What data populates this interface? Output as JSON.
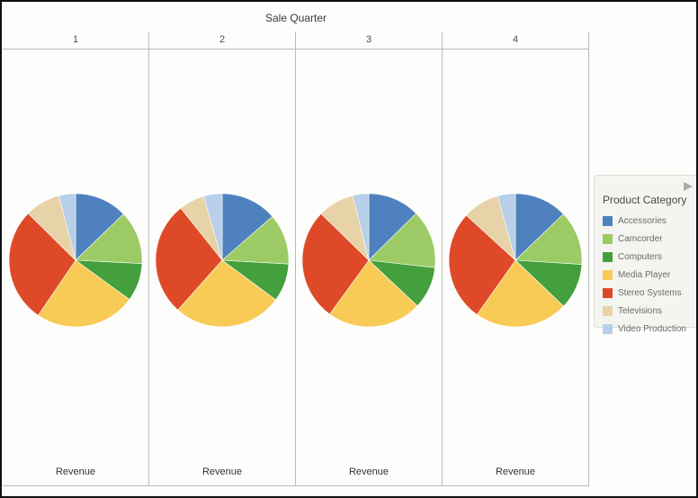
{
  "title": "Sale Quarter",
  "columns": [
    "1",
    "2",
    "3",
    "4"
  ],
  "axis_bottom_label": "Revenue",
  "legend": {
    "title": "Product Category",
    "items": [
      {
        "label": "Accessories",
        "color": "#4E81BD"
      },
      {
        "label": "Camcorder",
        "color": "#9CCB66"
      },
      {
        "label": "Computers",
        "color": "#43A03C"
      },
      {
        "label": "Media Player",
        "color": "#F8CB57"
      },
      {
        "label": "Stereo Systems",
        "color": "#DE4A28"
      },
      {
        "label": "Televisions",
        "color": "#E8D2A7"
      },
      {
        "label": "Video Production",
        "color": "#B7CFE8"
      }
    ]
  },
  "chart_data": {
    "type": "pie",
    "facet_by": "Sale Quarter",
    "measure": "Revenue",
    "title": "Sale Quarter",
    "legend_position": "right",
    "categories": [
      "Accessories",
      "Camcorder",
      "Computers",
      "Media Player",
      "Stereo Systems",
      "Televisions",
      "Video Production"
    ],
    "colors": [
      "#4E81BD",
      "#9CCB66",
      "#43A03C",
      "#F8CB57",
      "#DE4A28",
      "#E8D2A7",
      "#B7CFE8"
    ],
    "facets": [
      {
        "label": "1",
        "values_pct": [
          12.8,
          13.0,
          9.2,
          24.5,
          27.9,
          8.6,
          4.0
        ]
      },
      {
        "label": "2",
        "values_pct": [
          13.6,
          12.3,
          9.2,
          26.5,
          27.7,
          6.2,
          4.5
        ]
      },
      {
        "label": "3",
        "values_pct": [
          12.6,
          14.2,
          10.2,
          23.0,
          27.3,
          8.8,
          3.9
        ]
      },
      {
        "label": "4",
        "values_pct": [
          12.8,
          13.2,
          11.1,
          22.7,
          27.0,
          8.9,
          4.3
        ]
      }
    ]
  }
}
